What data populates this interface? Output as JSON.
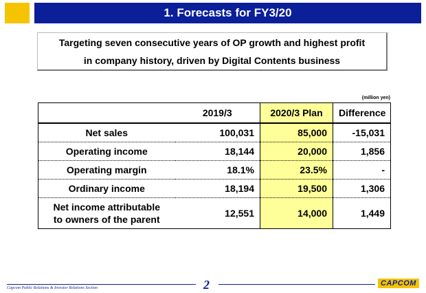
{
  "header": {
    "title": "1. Forecasts for FY3/20"
  },
  "subtitle": {
    "line1": "Targeting seven consecutive years of OP growth and highest profit",
    "line2": "in company history, driven by Digital Contents business"
  },
  "units": "(million yen)",
  "table": {
    "columns": [
      "",
      "2019/3",
      "2020/3 Plan",
      "Difference"
    ],
    "rows": [
      {
        "label": "Net sales",
        "fy2019": "100,031",
        "plan2020": "85,000",
        "difference": "-15,031"
      },
      {
        "label": "Operating income",
        "fy2019": "18,144",
        "plan2020": "20,000",
        "difference": "1,856"
      },
      {
        "label": "Operating margin",
        "fy2019": "18.1%",
        "plan2020": "23.5%",
        "difference": "-"
      },
      {
        "label": "Ordinary income",
        "fy2019": "18,194",
        "plan2020": "19,500",
        "difference": "1,306"
      },
      {
        "label_line1": "Net income attributable",
        "label_line2": "to owners of the parent",
        "fy2019": "12,551",
        "plan2020": "14,000",
        "difference": "1,449"
      }
    ]
  },
  "footer": {
    "section": "Capcom Public Relations & Investor Relations Section",
    "page": "2",
    "logo_text": "CAPCOM"
  },
  "colors": {
    "header_blue": "#0b1f99",
    "accent_yellow": "#f5c400",
    "plan_highlight": "#ffff99"
  }
}
